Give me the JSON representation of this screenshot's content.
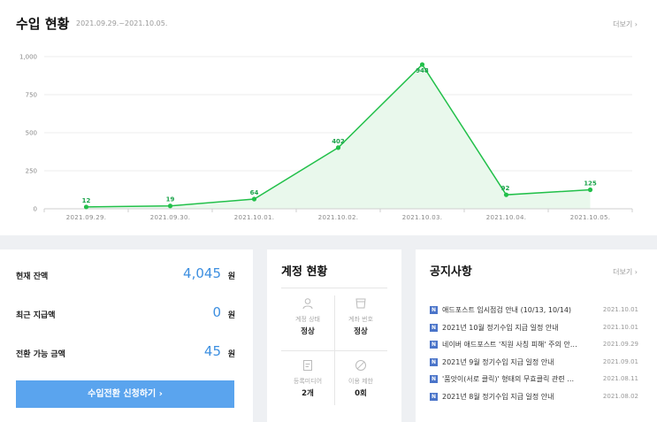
{
  "revenue": {
    "title": "수입 현황",
    "period": "2021.09.29.~2021.10.05.",
    "more": "더보기 ›"
  },
  "chart_data": {
    "type": "area",
    "categories": [
      "2021.09.29.",
      "2021.09.30.",
      "2021.10.01.",
      "2021.10.02.",
      "2021.10.03.",
      "2021.10.04.",
      "2021.10.05."
    ],
    "values": [
      12,
      19,
      64,
      402,
      948,
      92,
      125
    ],
    "data_labels": [
      "12",
      "19",
      "64",
      "402",
      "948",
      "92",
      "125"
    ],
    "y_ticks": [
      0,
      250,
      500,
      750,
      1000
    ],
    "y_tick_labels": [
      "0",
      "250",
      "500",
      "750",
      "1,000"
    ],
    "ylim": [
      0,
      1000
    ],
    "grid": true,
    "line_color": "#22c04a",
    "fill_color": "#e9f8ec",
    "label_color": "#1aa34a"
  },
  "balance": {
    "rows": [
      {
        "label": "현재 잔액",
        "value": "4,045",
        "unit": "원"
      },
      {
        "label": "최근 지급액",
        "value": "0",
        "unit": "원"
      },
      {
        "label": "전환 가능 금액",
        "value": "45",
        "unit": "원"
      }
    ],
    "button_label": "수입전환 신청하기  ›",
    "accent_color": "#5aa4ee"
  },
  "account": {
    "title": "계정 현황",
    "cells": [
      {
        "icon": "person-icon",
        "label": "계정 상태",
        "value": "정상"
      },
      {
        "icon": "bank-card-icon",
        "label": "계좌 번호",
        "value": "정상"
      },
      {
        "icon": "document-icon",
        "label": "등록미디어",
        "value": "2개"
      },
      {
        "icon": "prohibited-icon",
        "label": "이용 제한",
        "value": "0회"
      }
    ]
  },
  "notice": {
    "title": "공지사항",
    "more": "더보기 ›",
    "badge": "N",
    "items": [
      {
        "text": "애드포스트 임시점검 안내 (10/13, 10/14)",
        "date": "2021.10.01"
      },
      {
        "text": "2021년 10월 정기수입 지급 일정 안내",
        "date": "2021.10.01"
      },
      {
        "text": "네이버 애드포스트 '직원 사칭 피해' 주의 안…",
        "date": "2021.09.29"
      },
      {
        "text": "2021년 9월 정기수입 지급 일정 안내",
        "date": "2021.09.01"
      },
      {
        "text": "'품앗이(서로 클릭)' 형태의 무효클릭 관련 …",
        "date": "2021.08.11"
      },
      {
        "text": "2021년 8월 정기수입 지급 일정 안내",
        "date": "2021.08.02"
      }
    ]
  }
}
